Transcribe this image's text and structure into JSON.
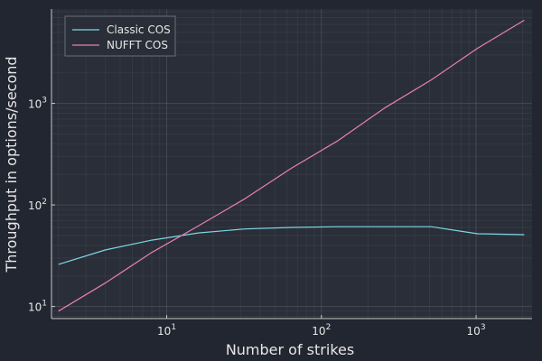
{
  "chart_data": {
    "type": "line",
    "title": "",
    "xlabel": "Number of strikes",
    "ylabel": "Throughput in options/second",
    "x_scale": "log",
    "y_scale": "log",
    "xlim": [
      1.8,
      2300
    ],
    "ylim": [
      7.6,
      8500
    ],
    "x_ticks": [
      {
        "value": 10,
        "base": "10",
        "exp": "1"
      },
      {
        "value": 100,
        "base": "10",
        "exp": "2"
      },
      {
        "value": 1000,
        "base": "10",
        "exp": "3"
      }
    ],
    "y_ticks": [
      {
        "value": 10,
        "base": "10",
        "exp": "1"
      },
      {
        "value": 100,
        "base": "10",
        "exp": "2"
      },
      {
        "value": 1000,
        "base": "10",
        "exp": "3"
      }
    ],
    "grid": true,
    "legend_position": "top-left",
    "x": [
      2,
      4,
      8,
      16,
      32,
      64,
      128,
      256,
      512,
      1024,
      2048
    ],
    "series": [
      {
        "name": "Classic COS",
        "color": "#7fd6e6",
        "values": [
          26,
          36,
          45,
          53,
          58,
          60,
          61,
          61,
          61,
          52,
          51
        ]
      },
      {
        "name": "NUFFT COS",
        "color": "#e87fb4",
        "values": [
          9,
          17,
          34,
          62,
          115,
          230,
          430,
          900,
          1700,
          3500,
          6600
        ]
      }
    ]
  }
}
